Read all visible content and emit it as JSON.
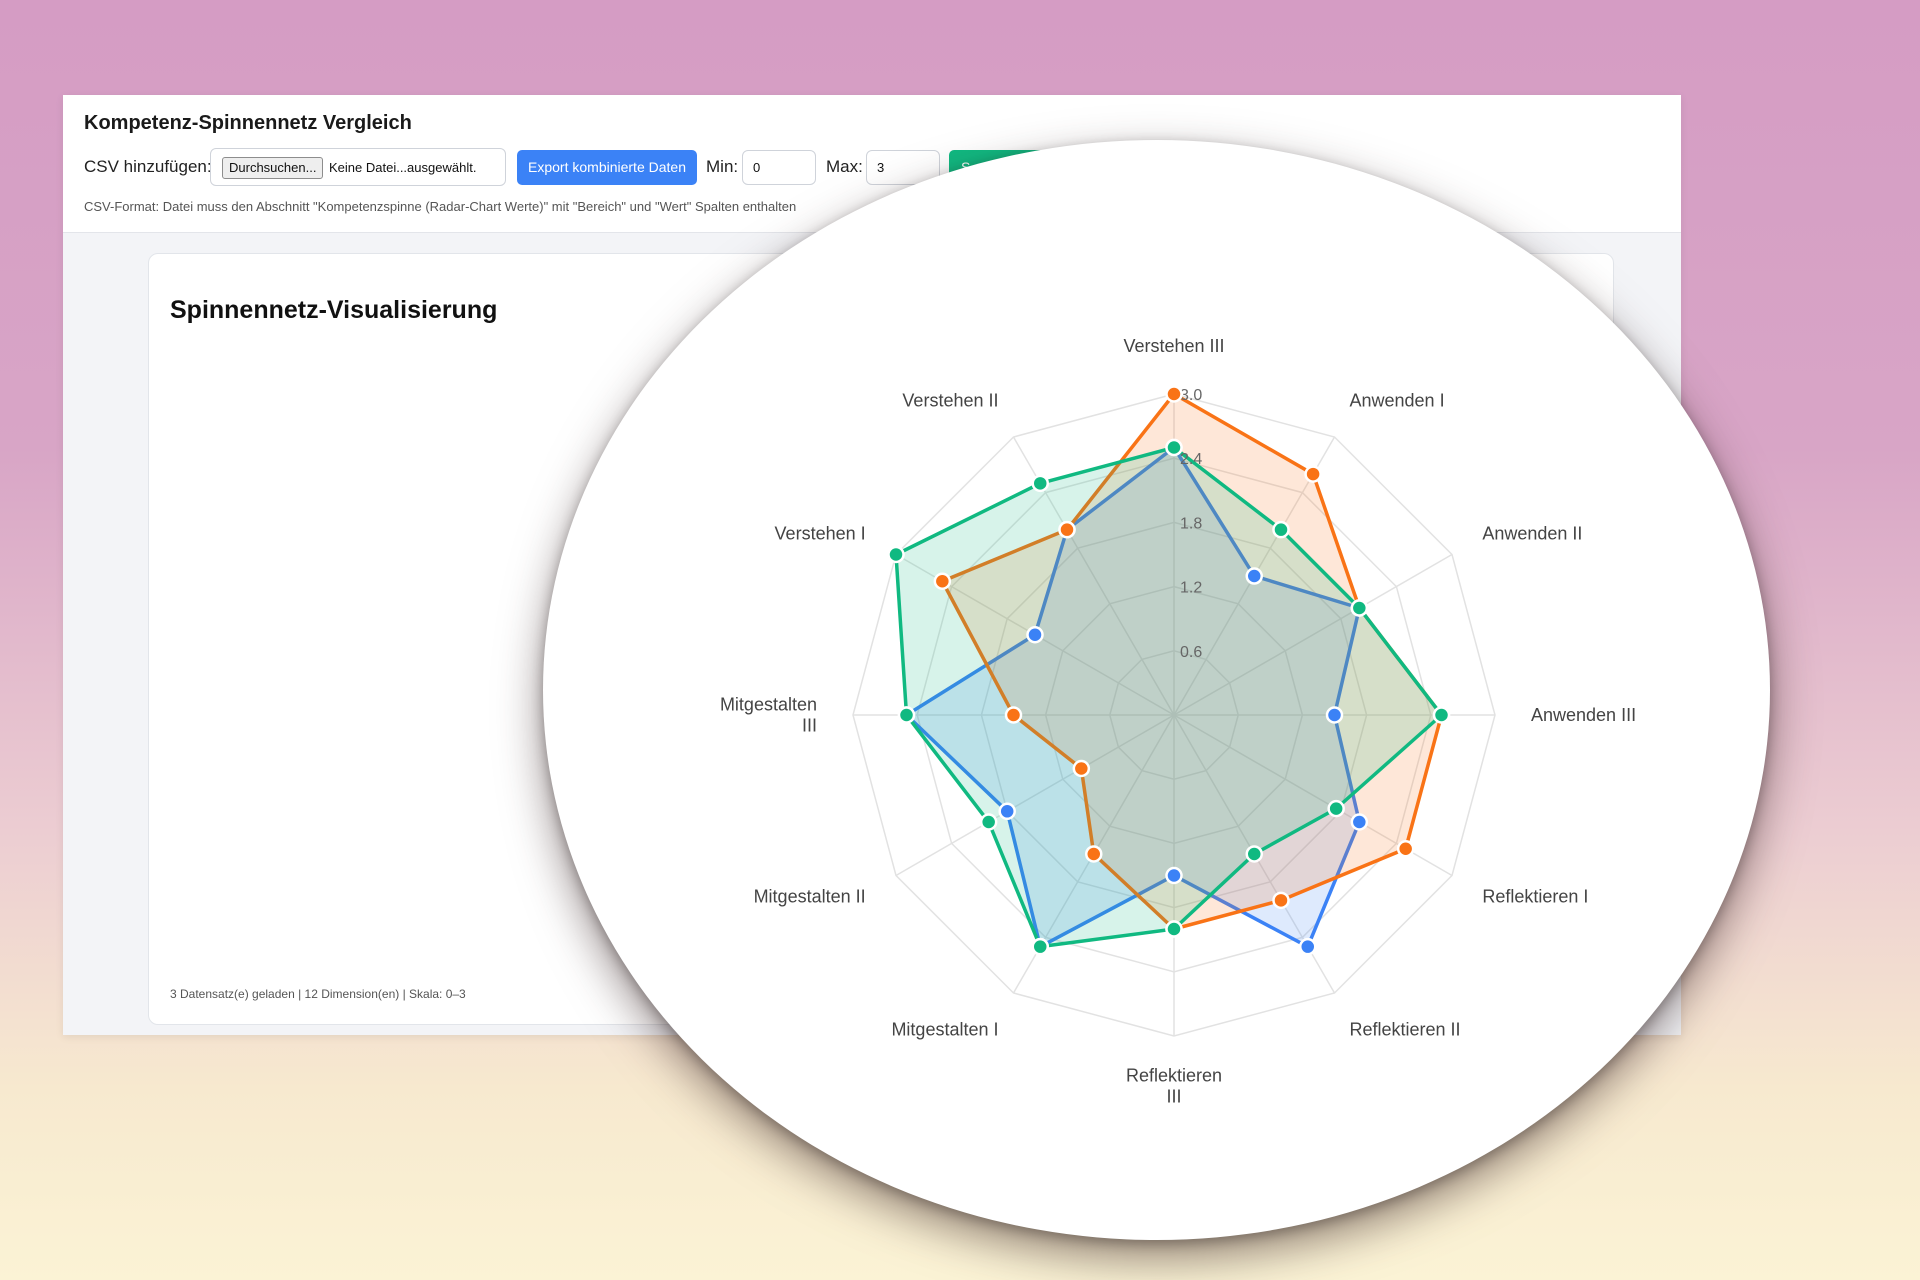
{
  "header": {
    "title": "Kompetenz-Spinnennetz Vergleich",
    "csv_label": "CSV hinzufügen:",
    "browse_label": "Durchsuchen...",
    "file_status": "Keine Datei...ausgewählt.",
    "export_label": "Export kombinierte Daten",
    "min_label": "Min:",
    "min_value": "0",
    "max_label": "Max:",
    "max_value": "3",
    "green_button_label": "S",
    "hint": "CSV-Format: Datei muss den Abschnitt \"Kompetenzspinne (Radar-Chart Werte)\" mit \"Bereich\" und \"Wert\" Spalten enthalten"
  },
  "card": {
    "title": "Spinnennetz-Visualisierung",
    "status": "3 Datensatz(e) geladen | 12 Dimension(en) | Skala: 0–3"
  },
  "colors": {
    "blue": "#3b82f6",
    "orange": "#f97316",
    "green": "#10b981",
    "export_button": "#3b82f6"
  },
  "chart_data": {
    "type": "radar",
    "categories": [
      [
        "Verstehen III"
      ],
      [
        "Anwenden I"
      ],
      [
        "Anwenden II"
      ],
      [
        "Anwenden III"
      ],
      [
        "Reflektieren I"
      ],
      [
        "Reflektieren II"
      ],
      [
        "Reflektieren",
        "III"
      ],
      [
        "Mitgestalten I"
      ],
      [
        "Mitgestalten II"
      ],
      [
        "Mitgestalten",
        "III"
      ],
      [
        "Verstehen I"
      ],
      [
        "Verstehen II"
      ]
    ],
    "ticks": [
      "0.6",
      "1.2",
      "1.8",
      "2.4",
      "3.0"
    ],
    "range": [
      0,
      3
    ],
    "grid": true,
    "series": [
      {
        "color": "#3b82f6",
        "values": [
          2.5,
          1.5,
          2.0,
          1.5,
          2.0,
          2.5,
          1.5,
          2.5,
          1.8,
          2.5,
          1.5,
          2.0
        ]
      },
      {
        "color": "#f97316",
        "values": [
          3.0,
          2.6,
          2.0,
          2.5,
          2.5,
          2.0,
          2.0,
          1.5,
          1.0,
          1.5,
          2.5,
          2.0
        ]
      },
      {
        "color": "#10b981",
        "values": [
          2.5,
          2.0,
          2.0,
          2.5,
          1.75,
          1.5,
          2.0,
          2.5,
          2.0,
          2.5,
          3.0,
          2.5
        ]
      }
    ]
  }
}
